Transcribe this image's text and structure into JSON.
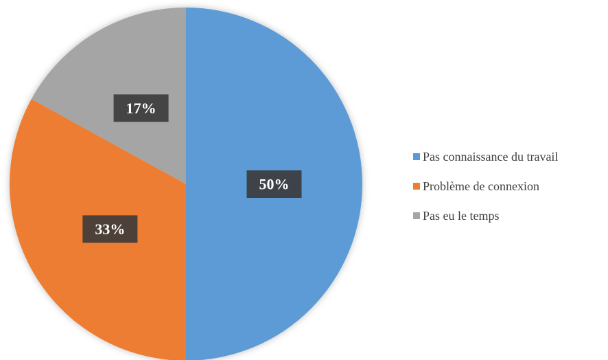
{
  "chart_data": {
    "type": "pie",
    "categories": [
      "Pas connaissance du travail",
      "Problème de connexion",
      "Pas eu le temps"
    ],
    "values": [
      50,
      33,
      17
    ],
    "value_labels": [
      "50%",
      "33%",
      "17%"
    ],
    "colors": [
      "#5b9bd5",
      "#ed7d31",
      "#a5a5a5"
    ],
    "legend": "right"
  }
}
